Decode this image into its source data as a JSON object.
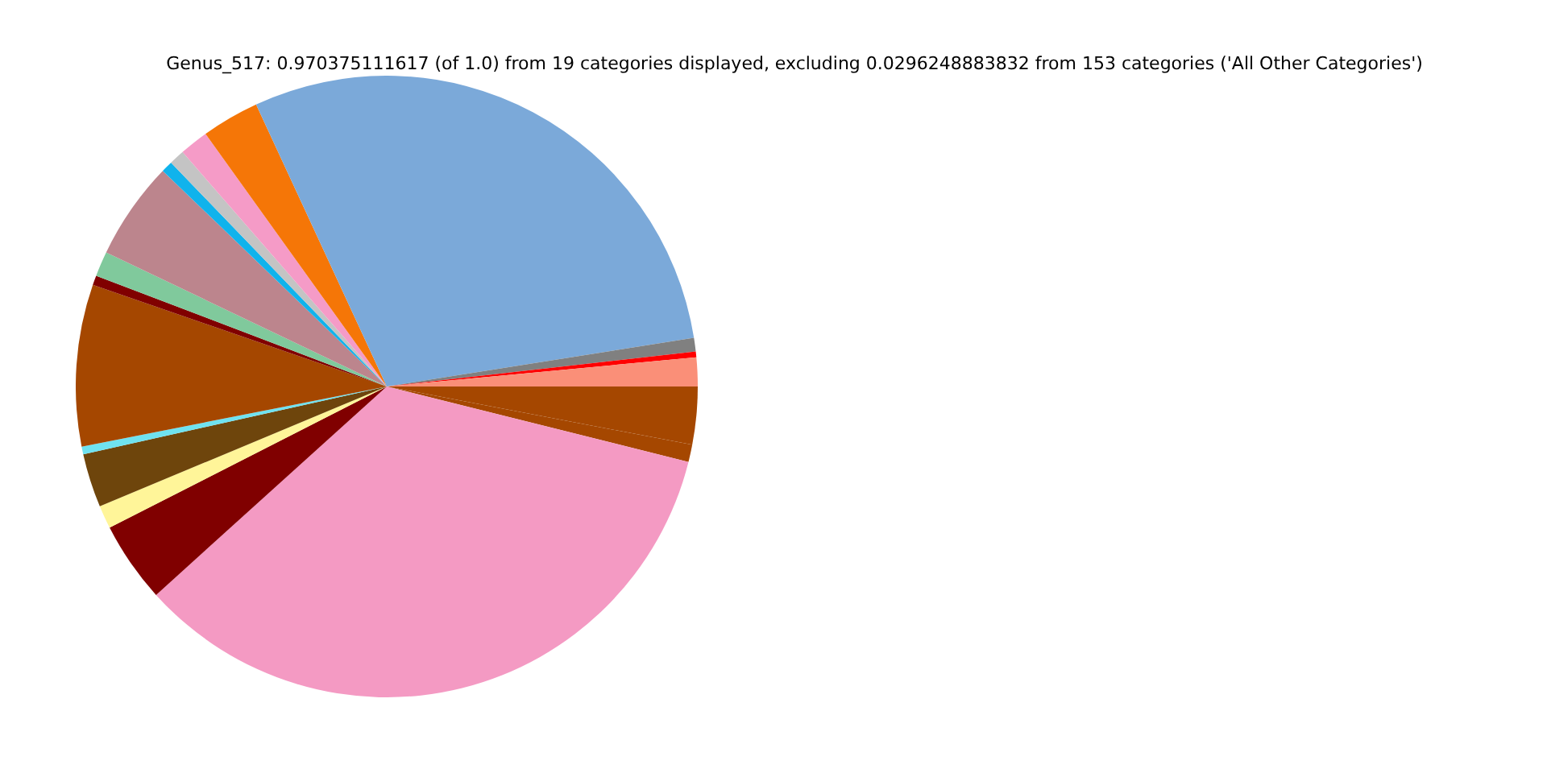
{
  "chart_data": {
    "type": "pie",
    "title": "Genus_517: 0.970375111617 (of 1.0) from 19 categories displayed, excluding 0.0296248883832 from 153 categories ('All Other Categories')",
    "categories": [
      null,
      null,
      null,
      null,
      null,
      null,
      null,
      null,
      null,
      null,
      null,
      null,
      null,
      null,
      null,
      null,
      null,
      null,
      null
    ],
    "values": [
      1.5,
      0.3,
      0.7,
      29.4,
      3.0,
      1.5,
      0.8,
      0.6,
      5.1,
      1.3,
      0.5,
      8.4,
      0.4,
      2.8,
      1.2,
      4.2,
      34.4,
      0.9,
      3.0
    ],
    "colors": [
      "#fa8f78",
      "#ff0000",
      "#808080",
      "#7ba9d9",
      "#f57607",
      "#f59bc7",
      "#c4c4c4",
      "#10b3ec",
      "#bc858d",
      "#80c99c",
      "#800000",
      "#a54700",
      "#6fe2f0",
      "#6e450c",
      "#fff599",
      "#800000",
      "#f49ac3",
      "#a54700",
      "#a54700"
    ],
    "legend": false
  }
}
